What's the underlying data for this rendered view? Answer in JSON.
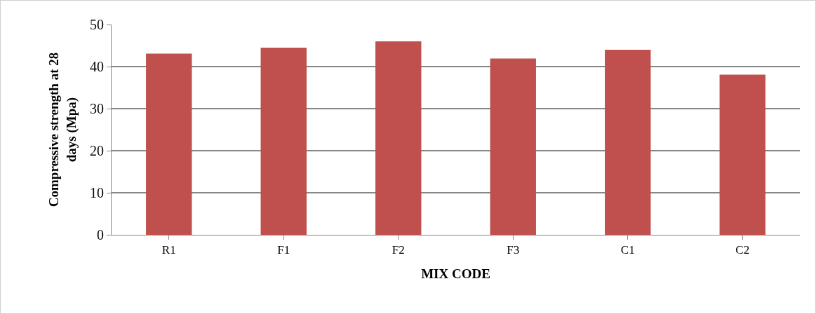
{
  "chart_data": {
    "type": "bar",
    "xlabel": "MIX CODE",
    "ylabel": "Compressive strength at 28 days (Mpa)",
    "categories": [
      "R1",
      "F1",
      "F2",
      "F3",
      "C1",
      "C2"
    ],
    "values": [
      43.1,
      44.5,
      46.0,
      41.9,
      44.0,
      38.1
    ],
    "color": "#c0504d",
    "ylim": [
      0,
      50
    ],
    "yticks": [
      0,
      10,
      20,
      30,
      40,
      50
    ],
    "grid": "y",
    "legend": false
  }
}
